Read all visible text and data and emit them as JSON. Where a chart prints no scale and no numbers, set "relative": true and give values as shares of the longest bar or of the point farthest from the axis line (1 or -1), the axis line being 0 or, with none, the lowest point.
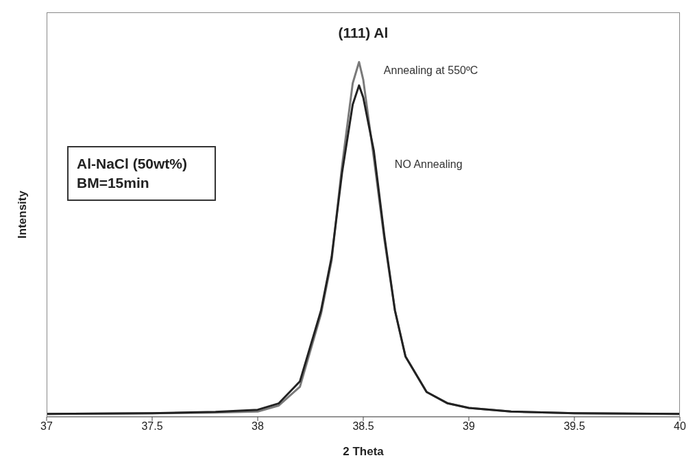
{
  "chart_data": {
    "type": "line",
    "title": "(111) Al",
    "xlabel": "2 Theta",
    "ylabel": "Intensity",
    "relative": true,
    "marker": "none",
    "line_style": "solid",
    "xlim": [
      37,
      40
    ],
    "xticks": [
      37,
      37.5,
      38,
      38.5,
      39,
      39.5,
      40
    ],
    "annotations": [
      "Al-NaCl (50wt%)\nBM=15min"
    ],
    "series": [
      {
        "name": "Annealing at 550ºC",
        "color": "#7a7a7a",
        "x": [
          37,
          37.5,
          37.8,
          38,
          38.1,
          38.2,
          38.3,
          38.35,
          38.4,
          38.45,
          38.48,
          38.5,
          38.55,
          38.6,
          38.65,
          38.7,
          38.8,
          38.9,
          39,
          39.2,
          39.5,
          40
        ],
        "values": [
          0.008,
          0.01,
          0.012,
          0.015,
          0.032,
          0.085,
          0.29,
          0.44,
          0.71,
          0.94,
          1,
          0.95,
          0.73,
          0.5,
          0.3,
          0.17,
          0.07,
          0.038,
          0.025,
          0.015,
          0.01,
          0.008
        ]
      },
      {
        "name": "NO Annealing",
        "color": "#222222",
        "x": [
          37,
          37.5,
          37.8,
          38,
          38.1,
          38.2,
          38.3,
          38.35,
          38.4,
          38.45,
          38.48,
          38.5,
          38.55,
          38.6,
          38.65,
          38.7,
          38.8,
          38.9,
          39,
          39.2,
          39.5,
          40
        ],
        "values": [
          0.008,
          0.01,
          0.014,
          0.02,
          0.038,
          0.1,
          0.3,
          0.45,
          0.69,
          0.88,
          0.934,
          0.9,
          0.75,
          0.51,
          0.3,
          0.17,
          0.07,
          0.038,
          0.025,
          0.015,
          0.01,
          0.008
        ]
      }
    ]
  }
}
